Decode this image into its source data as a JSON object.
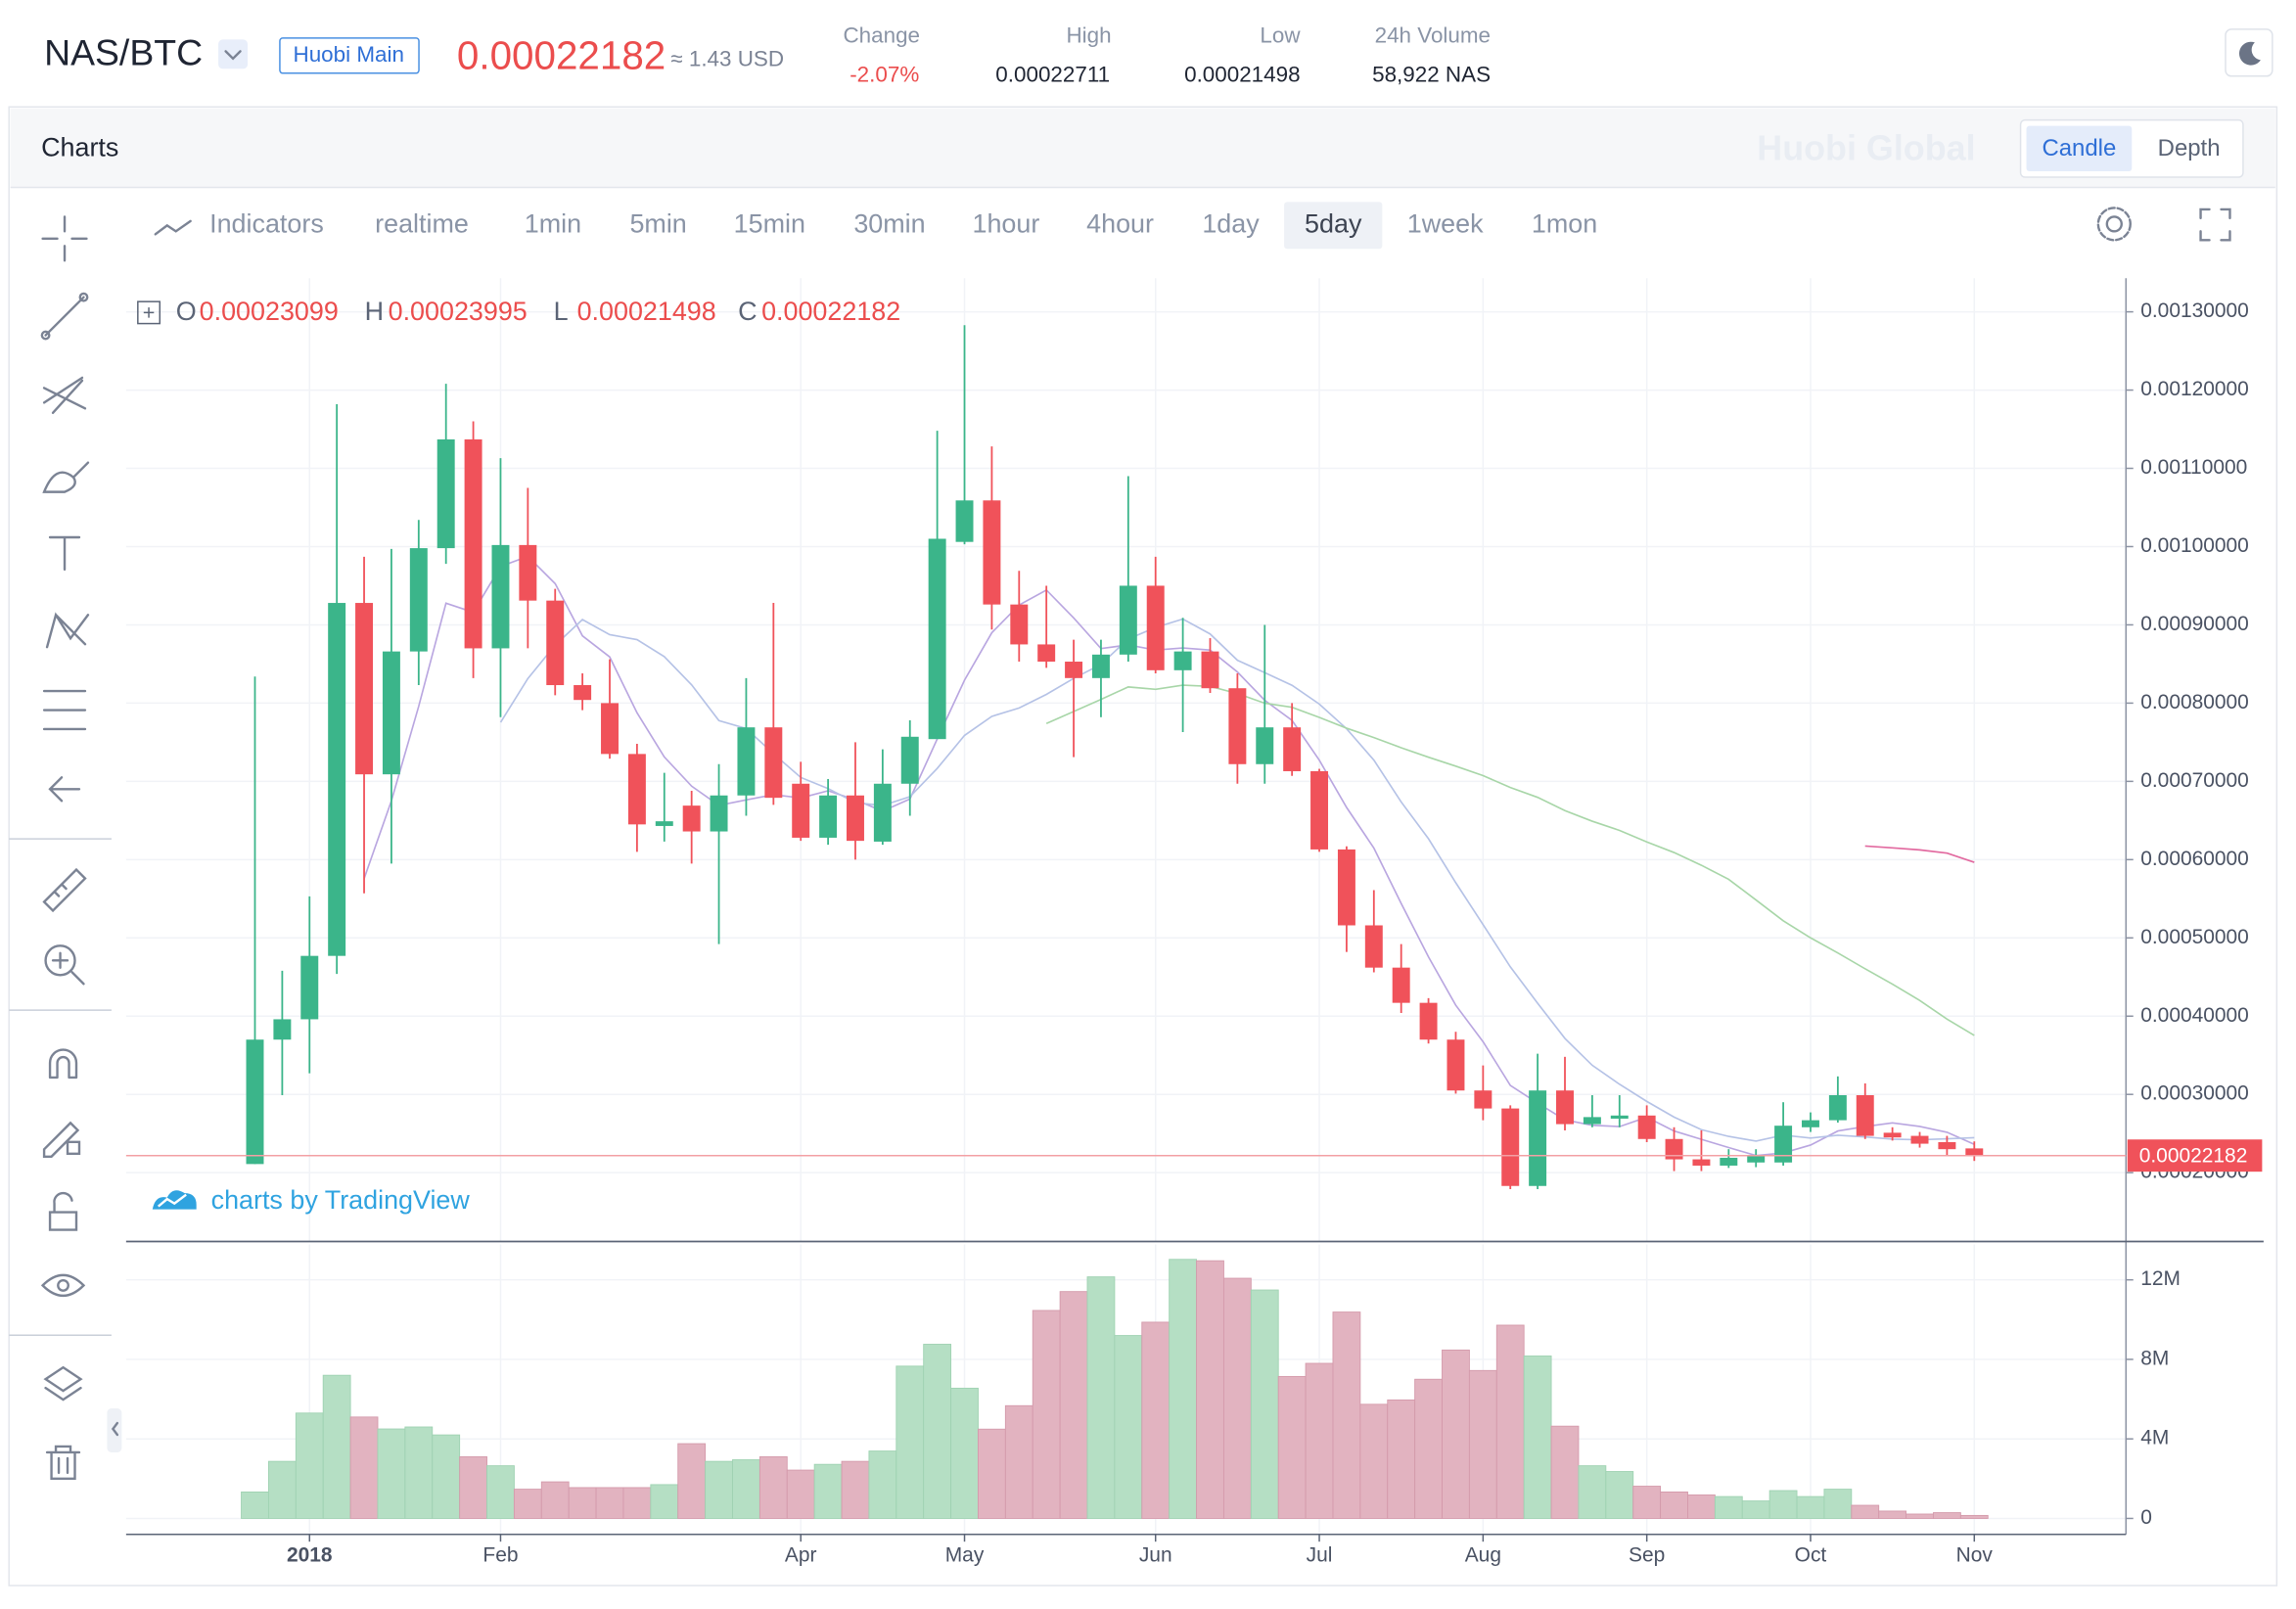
{
  "header": {
    "pair": "NAS/BTC",
    "exchange": "Huobi Main",
    "price": "0.00022182",
    "price_usd": "≈ 1.43 USD",
    "stats": [
      {
        "label": "Change",
        "value": "-2.07%"
      },
      {
        "label": "High",
        "value": "0.00022711"
      },
      {
        "label": "Low",
        "value": "0.00021498"
      },
      {
        "label": "24h Volume",
        "value": "58,922 NAS"
      }
    ]
  },
  "panel": {
    "title": "Charts",
    "watermark": "Huobi Global",
    "views": [
      "Candle",
      "Depth"
    ]
  },
  "toolbar": {
    "indicators": "Indicators",
    "intervals": [
      "realtime",
      "1min",
      "5min",
      "15min",
      "30min",
      "1hour",
      "4hour",
      "1day",
      "5day",
      "1week",
      "1mon"
    ]
  },
  "chart_data": {
    "type": "candlestick",
    "credit": "charts by TradingView",
    "ohlc_labels": [
      "O",
      "H",
      "L",
      "C"
    ],
    "up_color": "#3bb58a",
    "down_color": "#f0525a",
    "volume_up_color": "#b5dfc4",
    "volume_down_color": "#e2b3c0",
    "categories": [
      null,
      null,
      "2018",
      null,
      null,
      null,
      null,
      null,
      null,
      "Feb",
      null,
      null,
      null,
      null,
      null,
      null,
      null,
      null,
      null,
      null,
      "Apr",
      null,
      null,
      null,
      null,
      null,
      "May",
      null,
      null,
      null,
      null,
      null,
      null,
      "Jun",
      null,
      null,
      null,
      null,
      null,
      "Jul",
      null,
      null,
      null,
      null,
      null,
      "Aug",
      null,
      null,
      null,
      null,
      null,
      "Sep",
      null,
      null,
      null,
      null,
      null,
      "Oct",
      null,
      null,
      null,
      null,
      null,
      "Nov"
    ],
    "open": [
      0.000211,
      0.00037,
      0.000396,
      0.000477,
      0.000928,
      0.000709,
      0.000866,
      0.000998,
      0.001137,
      0.00087,
      0.001002,
      0.000931,
      0.000823,
      0.0008,
      0.000735,
      0.000643,
      0.000669,
      0.000636,
      0.000682,
      0.000769,
      0.000697,
      0.000628,
      0.000682,
      0.000623,
      0.000697,
      0.000754,
      0.001006,
      0.001059,
      0.000926,
      0.000875,
      0.000853,
      0.000832,
      0.000862,
      0.00095,
      0.000842,
      0.000866,
      0.000819,
      0.000722,
      0.000769,
      0.000713,
      0.000613,
      0.000516,
      0.000462,
      0.000417,
      0.00037,
      0.000305,
      0.000282,
      0.000183,
      0.000305,
      0.000262,
      0.000269,
      0.000273,
      0.000243,
      0.000217,
      0.000209,
      0.000213,
      0.000213,
      0.000258,
      0.000267,
      0.000299,
      0.000251,
      0.000247,
      0.000239,
      0.00023099
    ],
    "high": [
      0.000834,
      0.000458,
      0.000553,
      0.001182,
      0.000987,
      0.000997,
      0.001034,
      0.001208,
      0.00116,
      0.001113,
      0.001075,
      0.000946,
      0.000838,
      0.000856,
      0.000748,
      0.000711,
      0.000688,
      0.000722,
      0.000832,
      0.000928,
      0.000725,
      0.000703,
      0.00075,
      0.000741,
      0.000778,
      0.001148,
      0.001283,
      0.001128,
      0.000969,
      0.00095,
      0.000881,
      0.000881,
      0.00109,
      0.000987,
      0.000909,
      0.000883,
      0.000838,
      0.0009,
      0.0008,
      0.000716,
      0.000617,
      0.000561,
      0.000492,
      0.000423,
      0.00038,
      0.000337,
      0.000286,
      0.000352,
      0.000348,
      0.000299,
      0.000299,
      0.000286,
      0.000258,
      0.000254,
      0.00023,
      0.00023,
      0.00029,
      0.000277,
      0.000323,
      0.000314,
      0.000258,
      0.000252,
      0.000247,
      0.00023995
    ],
    "low": [
      0.000211,
      0.000299,
      0.000327,
      0.000454,
      0.000557,
      0.000595,
      0.000823,
      0.000978,
      0.000832,
      0.000782,
      0.00087,
      0.00081,
      0.000791,
      0.000729,
      0.00061,
      0.000623,
      0.000595,
      0.000492,
      0.000656,
      0.00067,
      0.000624,
      0.000619,
      0.0006,
      0.000619,
      0.000656,
      0.000754,
      0.001003,
      0.000894,
      0.000853,
      0.000845,
      0.000731,
      0.000782,
      0.000853,
      0.000838,
      0.000763,
      0.000813,
      0.000697,
      0.000697,
      0.000707,
      0.00061,
      0.000482,
      0.000456,
      0.000404,
      0.000365,
      0.000301,
      0.000267,
      0.000179,
      0.000179,
      0.000254,
      0.000258,
      0.000258,
      0.000239,
      0.000202,
      0.000202,
      0.000206,
      0.000207,
      0.000209,
      0.000252,
      0.000264,
      0.000243,
      0.000241,
      0.000232,
      0.000221,
      0.00021498
    ],
    "close": [
      0.00037,
      0.000396,
      0.000477,
      0.000928,
      0.000709,
      0.000866,
      0.000998,
      0.001137,
      0.00087,
      0.001002,
      0.000931,
      0.000823,
      0.000804,
      0.000735,
      0.000645,
      0.000649,
      0.000636,
      0.000682,
      0.000769,
      0.000679,
      0.000628,
      0.000682,
      0.000624,
      0.000697,
      0.000757,
      0.00101,
      0.001059,
      0.000926,
      0.000875,
      0.000853,
      0.000832,
      0.000862,
      0.00095,
      0.000842,
      0.000866,
      0.000819,
      0.000722,
      0.000769,
      0.000713,
      0.000613,
      0.000516,
      0.000462,
      0.000417,
      0.00037,
      0.000305,
      0.000282,
      0.000183,
      0.000305,
      0.000262,
      0.000271,
      0.000273,
      0.000243,
      0.000217,
      0.000209,
      0.000219,
      0.000221,
      0.00026,
      0.000267,
      0.000299,
      0.000247,
      0.000245,
      0.000237,
      0.00023,
      0.00022182
    ],
    "volume": [
      1330000,
      2870000,
      5300000,
      7200000,
      5100000,
      4500000,
      4600000,
      4200000,
      3100000,
      2650000,
      1470000,
      1840000,
      1550000,
      1550000,
      1550000,
      1700000,
      3760000,
      2870000,
      2950000,
      3100000,
      2430000,
      2720000,
      2870000,
      3390000,
      7660000,
      8760000,
      6550000,
      4490000,
      5670000,
      10460000,
      11410000,
      12150000,
      9200000,
      9870000,
      13030000,
      12960000,
      12080000,
      11490000,
      7140000,
      7800000,
      10380000,
      5740000,
      5960000,
      7000000,
      8470000,
      7440000,
      9720000,
      8170000,
      4640000,
      2650000,
      2360000,
      1620000,
      1330000,
      1180000,
      1100000,
      880000,
      1400000,
      1100000,
      1470000,
      660000,
      370000,
      220000,
      290000,
      150000
    ],
    "ylim": [
      0.000112,
      0.001343
    ],
    "yticks": [
      {
        "value": 0.0002,
        "label": "0.00020000"
      },
      {
        "value": 0.0003,
        "label": "0.00030000"
      },
      {
        "value": 0.0004,
        "label": "0.00040000"
      },
      {
        "value": 0.0005,
        "label": "0.00050000"
      },
      {
        "value": 0.0006,
        "label": "0.00060000"
      },
      {
        "value": 0.0007,
        "label": "0.00070000"
      },
      {
        "value": 0.0008,
        "label": "0.00080000"
      },
      {
        "value": 0.0009,
        "label": "0.00090000"
      },
      {
        "value": 0.001,
        "label": "0.00100000"
      },
      {
        "value": 0.0011,
        "label": "0.00110000"
      },
      {
        "value": 0.0012,
        "label": "0.00120000"
      },
      {
        "value": 0.0013,
        "label": "0.00130000"
      }
    ],
    "volume_ylim": [
      -800000,
      13780000
    ],
    "volume_yticks": [
      0,
      {
        "value": 4000000,
        "label": "4M"
      },
      {
        "value": 8000000,
        "label": "8M"
      },
      {
        "value": 12000000,
        "label": "12M"
      }
    ],
    "grid": true
  }
}
